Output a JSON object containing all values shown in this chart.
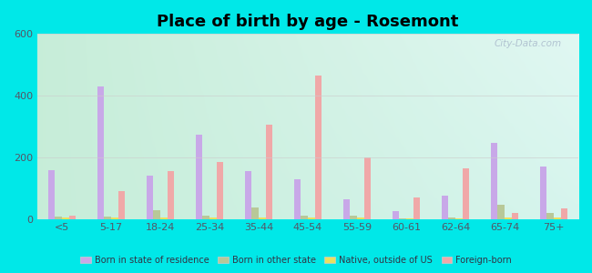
{
  "title": "Place of birth by age - Rosemont",
  "categories": [
    "<5",
    "5-17",
    "18-24",
    "25-34",
    "35-44",
    "45-54",
    "55-59",
    "60-61",
    "62-64",
    "65-74",
    "75+"
  ],
  "series": {
    "Born in state of residence": [
      160,
      430,
      140,
      275,
      155,
      130,
      65,
      25,
      75,
      248,
      170
    ],
    "Born in other state": [
      8,
      8,
      28,
      10,
      38,
      12,
      12,
      3,
      5,
      48,
      20
    ],
    "Native, outside of US": [
      4,
      4,
      4,
      4,
      4,
      4,
      4,
      2,
      2,
      4,
      4
    ],
    "Foreign-born": [
      10,
      90,
      155,
      185,
      305,
      465,
      200,
      70,
      165,
      20,
      35
    ]
  },
  "colors": {
    "Born in state of residence": "#c8a8e8",
    "Born in other state": "#b8c898",
    "Native, outside of US": "#e8e060",
    "Foreign-born": "#f0a8a8"
  },
  "ylim": [
    0,
    600
  ],
  "yticks": [
    0,
    200,
    400,
    600
  ],
  "bg_color": "#00e8e8",
  "plot_bg_top_left": "#c8ecd8",
  "plot_bg_top_right": "#e8f4f4",
  "plot_bg_bottom": "#d8f0e0",
  "watermark": "City-Data.com",
  "bar_width": 0.14,
  "title_fontsize": 13
}
